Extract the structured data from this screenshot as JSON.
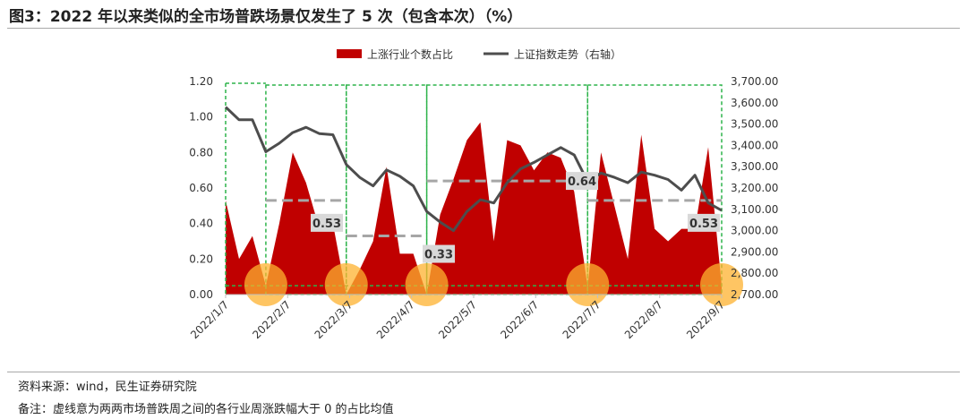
{
  "title": "图3：2022 年以来类似的全市场普跌场景仅发生了 5 次（包含本次）（%）",
  "source": "资料来源：wind，民生证券研究院",
  "note": "备注：虚线意为两两市场普跌周之间的各行业周涨跌幅大于 0 的占比均值",
  "colors": {
    "area": "#c00000",
    "line": "#4d4d4d",
    "green_dash": "#2db34a",
    "gray_dash": "#a6a6a6",
    "circle": "#fdb12f",
    "label_box": "#d9d9d9"
  },
  "chart_data": {
    "type": "area",
    "x_ticks": [
      "2022/1/7",
      "2022/2/7",
      "2022/3/7",
      "2022/4/7",
      "2022/5/7",
      "2022/6/7",
      "2022/7/7",
      "2022/8/7",
      "2022/9/7"
    ],
    "y_left_ticks": [
      "1.20",
      "1.00",
      "0.80",
      "0.60",
      "0.40",
      "0.20",
      "0.00"
    ],
    "y_right_ticks": [
      "3,700.00",
      "3,600.00",
      "3,500.00",
      "3,400.00",
      "3,300.00",
      "3,200.00",
      "3,100.00",
      "3,000.00",
      "2,900.00",
      "2,800.00",
      "2,700.00"
    ],
    "ylim_left": [
      0,
      1.2
    ],
    "ylim_right": [
      2700,
      3700
    ],
    "legend": [
      "上涨行业个数占比",
      "上证指数走势（右轴）"
    ],
    "series": [
      {
        "name": "上涨行业个数占比",
        "axis": "left",
        "values": [
          0.53,
          0.2,
          0.33,
          0.05,
          0.4,
          0.8,
          0.63,
          0.37,
          0.4,
          0.0,
          0.14,
          0.3,
          0.72,
          0.23,
          0.23,
          0.0,
          0.45,
          0.65,
          0.87,
          0.97,
          0.3,
          0.87,
          0.84,
          0.7,
          0.8,
          0.77,
          0.58,
          0.04,
          0.8,
          0.5,
          0.2,
          0.9,
          0.37,
          0.3,
          0.37,
          0.37,
          0.83,
          0.05
        ]
      },
      {
        "name": "上证指数走势（右轴）",
        "axis": "right",
        "values": [
          3580,
          3520,
          3520,
          3370,
          3410,
          3460,
          3485,
          3455,
          3450,
          3310,
          3250,
          3210,
          3285,
          3255,
          3210,
          3090,
          3040,
          3000,
          3090,
          3145,
          3130,
          3225,
          3290,
          3320,
          3355,
          3390,
          3355,
          3230,
          3270,
          3250,
          3225,
          3275,
          3260,
          3240,
          3190,
          3260,
          3130,
          3095
        ]
      }
    ],
    "averages": [
      {
        "label": "0.53",
        "value": 0.53
      },
      {
        "label": "0.33",
        "value": 0.33
      },
      {
        "label": "0.64",
        "value": 0.64
      },
      {
        "label": "0.53",
        "value": 0.53
      }
    ]
  }
}
